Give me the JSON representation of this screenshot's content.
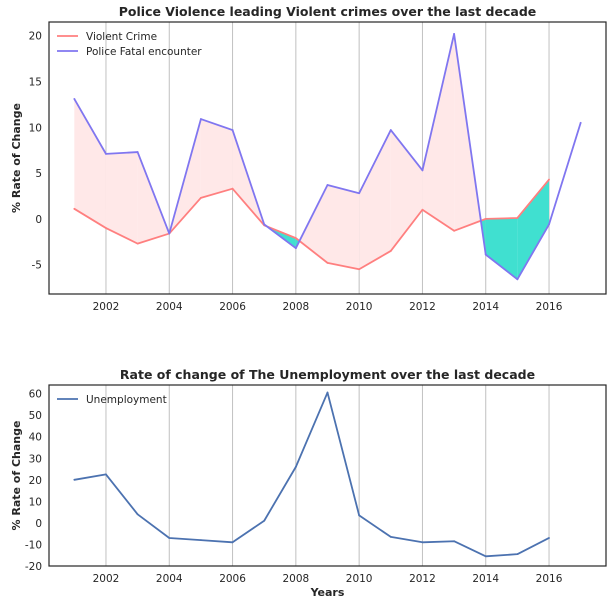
{
  "colors": {
    "violent": "#ff7f7f",
    "fatal": "#8076f0",
    "fill_above": "#ffe8e8",
    "fill_below": "#40e0d0",
    "unemployment": "#4c72b0",
    "grid": "#c0c0c0",
    "axes": "#262626"
  },
  "chart_data": [
    {
      "type": "line",
      "title": "Police Violence leading Violent crimes over the last decade",
      "xlabel": "",
      "ylabel": "% Rate of Change",
      "xlim": [
        2000.2,
        2017.8
      ],
      "ylim": [
        -8.2,
        21.5
      ],
      "xticks": [
        2002,
        2004,
        2006,
        2008,
        2010,
        2012,
        2014,
        2016
      ],
      "yticks": [
        -5,
        0,
        5,
        10,
        15,
        20
      ],
      "grid": "x-only",
      "legend": "top-left",
      "fill_between": "shaded pink where Police Fatal encounter is above Violent Crime, turquoise where it is below",
      "series": [
        {
          "name": "Violent Crime",
          "color_key": "violent",
          "x": [
            2001,
            2002,
            2003,
            2004,
            2005,
            2006,
            2007,
            2008,
            2009,
            2010,
            2011,
            2012,
            2013,
            2014,
            2015,
            2016
          ],
          "y": [
            1.1,
            -1.0,
            -2.7,
            -1.6,
            2.3,
            3.3,
            -0.7,
            -2.1,
            -4.8,
            -5.5,
            -3.5,
            1.0,
            -1.3,
            0.0,
            0.1,
            4.3
          ]
        },
        {
          "name": "Police Fatal encounter",
          "color_key": "fatal",
          "x": [
            2001,
            2002,
            2003,
            2004,
            2005,
            2006,
            2007,
            2008,
            2009,
            2010,
            2011,
            2012,
            2013,
            2014,
            2015,
            2016,
            2017
          ],
          "y": [
            13.1,
            7.1,
            7.3,
            -1.6,
            10.9,
            9.7,
            -0.6,
            -3.2,
            3.7,
            2.8,
            9.7,
            5.3,
            20.2,
            -3.9,
            -6.6,
            -0.6,
            10.5
          ]
        }
      ]
    },
    {
      "type": "line",
      "title": "Rate of change of The Unemployment over the last decade",
      "xlabel": "Years",
      "ylabel": "% Rate of Change",
      "xlim": [
        2000.2,
        2017.8
      ],
      "ylim": [
        -20,
        64
      ],
      "xticks": [
        2002,
        2004,
        2006,
        2008,
        2010,
        2012,
        2014,
        2016
      ],
      "yticks": [
        -20,
        -10,
        0,
        10,
        20,
        30,
        40,
        50,
        60
      ],
      "grid": "x-only",
      "legend": "top-left",
      "series": [
        {
          "name": "Unemployment",
          "color_key": "unemployment",
          "x": [
            2001,
            2002,
            2003,
            2004,
            2005,
            2006,
            2007,
            2008,
            2009,
            2010,
            2011,
            2012,
            2013,
            2014,
            2015,
            2016
          ],
          "y": [
            20.0,
            22.5,
            4.0,
            -7.0,
            -8.0,
            -9.0,
            1.0,
            26.0,
            60.5,
            3.5,
            -6.5,
            -9.0,
            -8.5,
            -15.5,
            -14.5,
            -7.0
          ]
        }
      ]
    }
  ]
}
